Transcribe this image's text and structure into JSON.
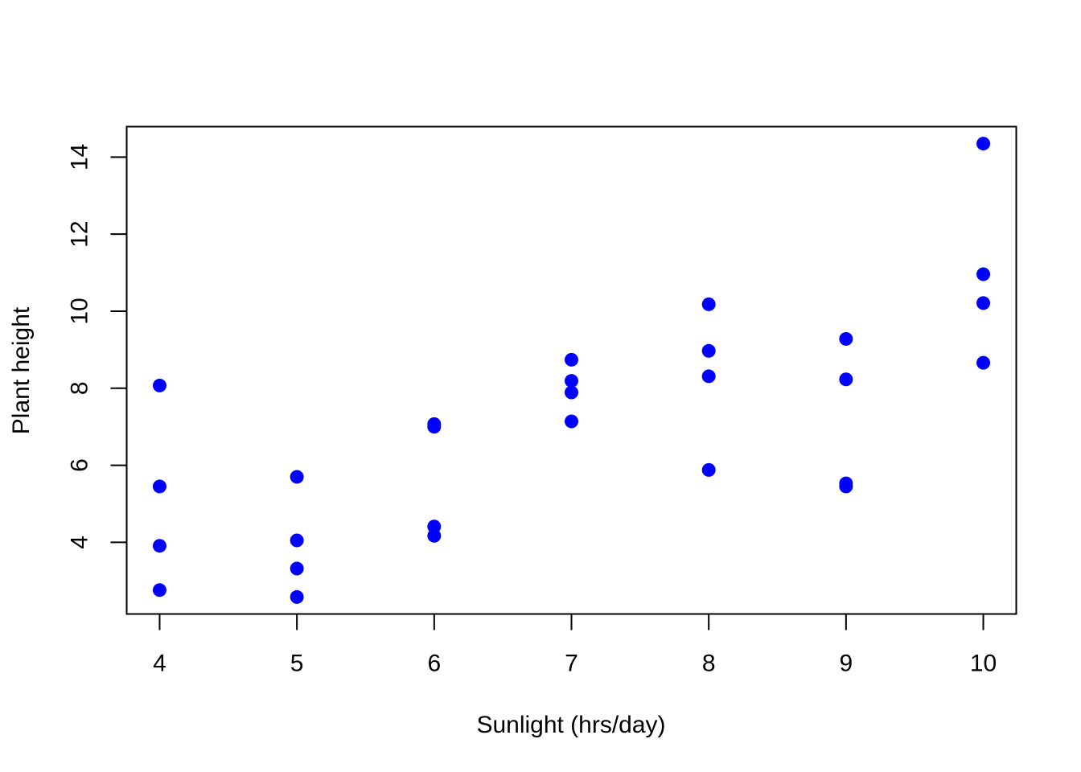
{
  "chart_data": {
    "type": "scatter",
    "title": "",
    "xlabel": "Sunlight (hrs/day)",
    "ylabel": "Plant height",
    "xlim": [
      3.76,
      10.24
    ],
    "ylim": [
      2.14,
      14.79
    ],
    "xticks": [
      4,
      5,
      6,
      7,
      8,
      9,
      10
    ],
    "yticks": [
      4,
      6,
      8,
      10,
      12,
      14
    ],
    "grid": false,
    "point_color": "#0000FF",
    "points": [
      {
        "x": 4,
        "y": 8.07
      },
      {
        "x": 4,
        "y": 5.45
      },
      {
        "x": 4,
        "y": 3.91
      },
      {
        "x": 4,
        "y": 2.76
      },
      {
        "x": 5,
        "y": 5.7
      },
      {
        "x": 5,
        "y": 4.05
      },
      {
        "x": 5,
        "y": 3.32
      },
      {
        "x": 5,
        "y": 2.58
      },
      {
        "x": 6,
        "y": 7.07
      },
      {
        "x": 6,
        "y": 7.0
      },
      {
        "x": 6,
        "y": 4.41
      },
      {
        "x": 6,
        "y": 4.17
      },
      {
        "x": 7,
        "y": 8.74
      },
      {
        "x": 7,
        "y": 8.19
      },
      {
        "x": 7,
        "y": 7.89
      },
      {
        "x": 7,
        "y": 7.14
      },
      {
        "x": 8,
        "y": 10.18
      },
      {
        "x": 8,
        "y": 8.97
      },
      {
        "x": 8,
        "y": 8.31
      },
      {
        "x": 8,
        "y": 5.88
      },
      {
        "x": 9,
        "y": 9.28
      },
      {
        "x": 9,
        "y": 8.23
      },
      {
        "x": 9,
        "y": 5.53
      },
      {
        "x": 9,
        "y": 5.45
      },
      {
        "x": 10,
        "y": 14.35
      },
      {
        "x": 10,
        "y": 10.96
      },
      {
        "x": 10,
        "y": 10.21
      },
      {
        "x": 10,
        "y": 8.66
      }
    ]
  }
}
